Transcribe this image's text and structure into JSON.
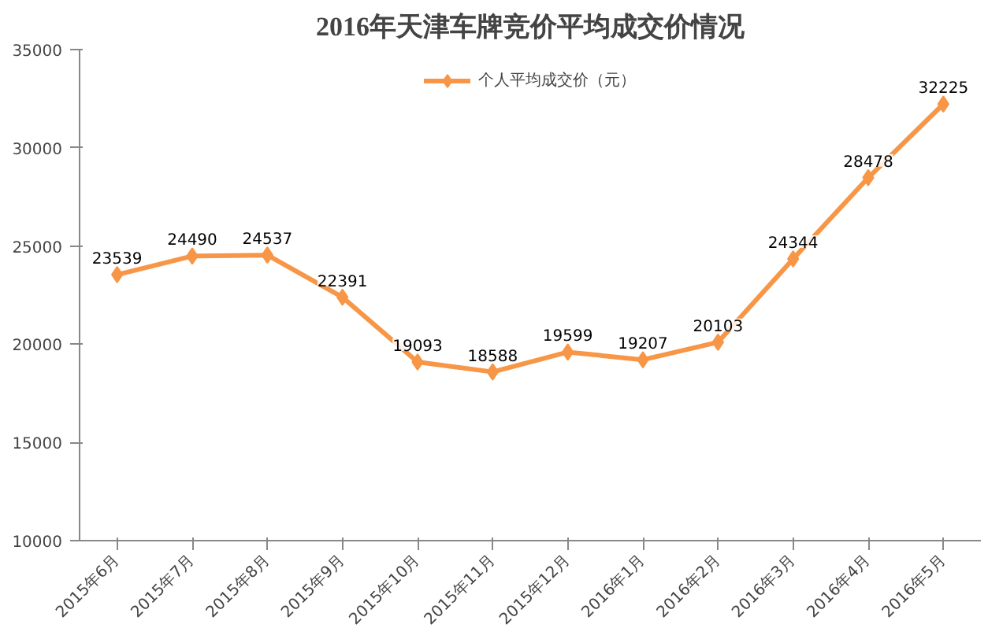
{
  "chart_data": {
    "type": "line",
    "title": "2016年天津车牌竞价平均成交价情况",
    "categories": [
      "2015年6月",
      "2015年7月",
      "2015年8月",
      "2015年9月",
      "2015年10月",
      "2015年11月",
      "2015年12月",
      "2016年1月",
      "2016年2月",
      "2016年3月",
      "2016年4月",
      "2016年5月"
    ],
    "series": [
      {
        "name": "个人平均成交价（元）",
        "color": "#f79646",
        "values": [
          23539,
          24490,
          24537,
          22391,
          19093,
          18588,
          19599,
          19207,
          20103,
          24344,
          28478,
          32225
        ]
      }
    ],
    "ylim": [
      10000,
      35000
    ],
    "yticks": [
      10000,
      15000,
      20000,
      25000,
      30000,
      35000
    ],
    "grid": false,
    "legend": "top",
    "marker": "diamond",
    "line_style": "solid",
    "data_labels": true
  }
}
